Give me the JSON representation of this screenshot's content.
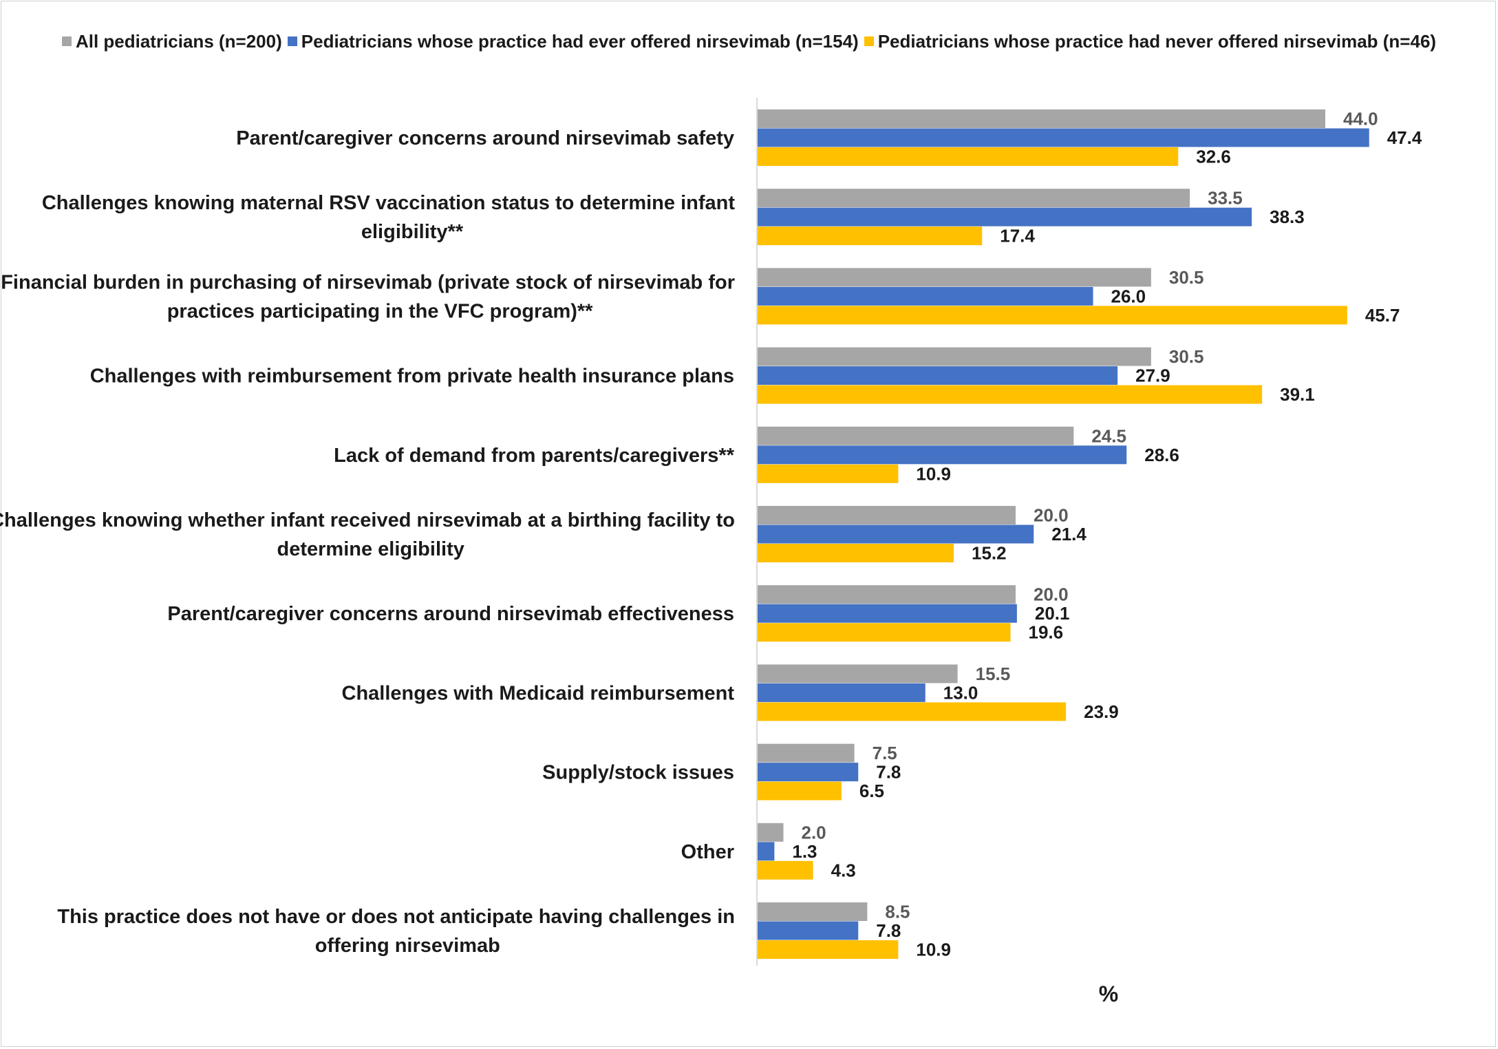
{
  "chart_data": {
    "type": "bar",
    "orientation": "horizontal",
    "xlabel": "%",
    "xlim": [
      0,
      50
    ],
    "grid": false,
    "legend_position": "top",
    "categories": [
      [
        "Parent/caregiver concerns around nirsevimab safety"
      ],
      [
        "Challenges knowing maternal RSV vaccination status to determine infant",
        "eligibility**"
      ],
      [
        "Financial burden in purchasing of nirsevimab (private stock of nirsevimab for",
        "practices participating in the VFC program)**"
      ],
      [
        "Challenges with reimbursement from private health insurance plans"
      ],
      [
        "Lack of demand from parents/caregivers**"
      ],
      [
        "Challenges knowing whether infant received nirsevimab at a birthing facility to",
        "determine eligibility"
      ],
      [
        "Parent/caregiver concerns around nirsevimab effectiveness"
      ],
      [
        "Challenges with Medicaid reimbursement"
      ],
      [
        "Supply/stock issues"
      ],
      [
        "Other"
      ],
      [
        "This practice does not have or does not anticipate having challenges in",
        "offering nirsevimab"
      ]
    ],
    "series": [
      {
        "name": "All pediatricians (n=200)",
        "color": "#a6a6a6",
        "label_color": "#595959",
        "values": [
          44.0,
          33.5,
          30.5,
          30.5,
          24.5,
          20.0,
          20.0,
          15.5,
          7.5,
          2.0,
          8.5
        ],
        "labels": [
          "44.0",
          "33.5",
          "30.5",
          "30.5",
          "24.5",
          "20.0",
          "20.0",
          "15.5",
          "7.5",
          "2.0",
          "8.5"
        ]
      },
      {
        "name": "Pediatricians whose practice had ever offered nirsevimab (n=154)",
        "color": "#4472c4",
        "label_color": "#1a1a1a",
        "values": [
          47.4,
          38.3,
          26.0,
          27.9,
          28.6,
          21.4,
          20.1,
          13.0,
          7.8,
          1.3,
          7.8
        ],
        "labels": [
          "47.4",
          "38.3",
          "26.0",
          "27.9",
          "28.6",
          "21.4",
          "20.1",
          "13.0",
          "7.8",
          "1.3",
          "7.8"
        ]
      },
      {
        "name": "Pediatricians whose practice had never offered nirsevimab (n=46)",
        "color": "#ffc000",
        "label_color": "#1a1a1a",
        "values": [
          32.6,
          17.4,
          45.7,
          39.1,
          10.9,
          15.2,
          19.6,
          23.9,
          6.5,
          4.3,
          10.9
        ],
        "labels": [
          "32.6",
          "17.4",
          "45.7",
          "39.1",
          "10.9",
          "15.2",
          "19.6",
          "23.9",
          "6.5",
          "4.3",
          "10.9"
        ]
      }
    ]
  }
}
